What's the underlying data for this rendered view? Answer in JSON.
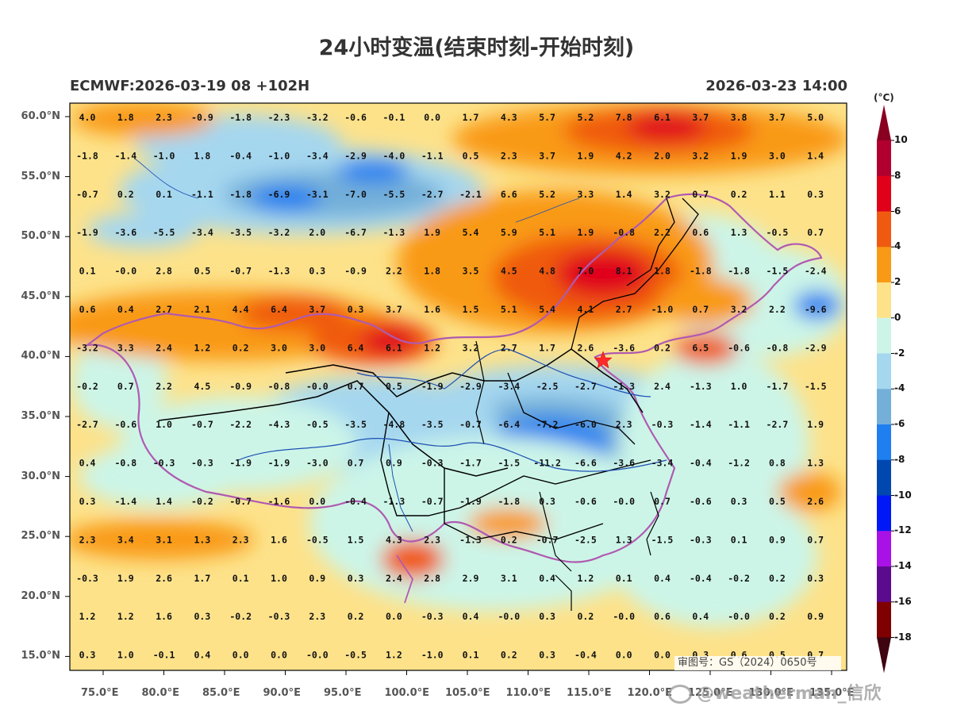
{
  "title": "24小时变温(结束时刻-开始时刻)",
  "model_info": "ECMWF:2026-03-19 08 +102H",
  "valid_time": "2026-03-23 14:00",
  "approval_number": "审图号：GS（2024）0650号",
  "watermark": "@weatherman_信欣",
  "colorbar": {
    "unit": "(°C)",
    "labels": [
      "10",
      "8",
      "6",
      "4",
      "2",
      "0",
      "-2",
      "-4",
      "-6",
      "-8",
      "-10",
      "-12",
      "-14",
      "-16",
      "-18"
    ],
    "colors": [
      "#b10030",
      "#e0001a",
      "#f05a10",
      "#f99a16",
      "#fde28a",
      "#ccf5e8",
      "#a5d7ef",
      "#73afd9",
      "#1f7ff0",
      "#0047b0",
      "#0018f5",
      "#a812e6",
      "#5d0b8e",
      "#7e0000"
    ],
    "top_cap": "#8a0020",
    "bottom_cap": "#3e0510"
  },
  "map": {
    "x_ticks": [
      "75.0°E",
      "80.0°E",
      "85.0°E",
      "90.0°E",
      "95.0°E",
      "100.0°E",
      "105.0°E",
      "110.0°E",
      "115.0°E",
      "120.0°E",
      "125.0°E",
      "130.0°E",
      "135.0°E"
    ],
    "y_ticks": [
      "60.0°N",
      "55.0°N",
      "50.0°N",
      "45.0°N",
      "40.0°N",
      "35.0°N",
      "30.0°N",
      "25.0°N",
      "20.0°N",
      "15.0°N"
    ],
    "grid_values": [
      [
        "4.0",
        "1.8",
        "2.3",
        "-0.9",
        "-1.8",
        "-2.3",
        "-3.2",
        "-0.6",
        "-0.1",
        "0.0",
        "1.7",
        "4.3",
        "5.7",
        "5.2",
        "7.8",
        "6.1",
        "3.7",
        "3.8",
        "3.7",
        "5.0"
      ],
      [
        "-1.8",
        "-1.4",
        "-1.0",
        "1.8",
        "-0.4",
        "-1.0",
        "-3.4",
        "-2.9",
        "-4.0",
        "-1.1",
        "0.5",
        "2.3",
        "3.7",
        "1.9",
        "4.2",
        "2.0",
        "3.2",
        "1.9",
        "3.0",
        "1.4"
      ],
      [
        "-0.7",
        "0.2",
        "0.1",
        "-1.1",
        "-1.8",
        "-6.9",
        "-3.1",
        "-7.0",
        "-5.5",
        "-2.7",
        "-2.1",
        "6.6",
        "5.2",
        "3.3",
        "1.4",
        "3.2",
        "0.7",
        "0.2",
        "1.1",
        "0.3"
      ],
      [
        "-1.9",
        "-3.6",
        "-5.5",
        "-3.4",
        "-3.5",
        "-3.2",
        "2.0",
        "-6.7",
        "-1.3",
        "1.9",
        "5.4",
        "5.9",
        "5.1",
        "1.9",
        "-0.8",
        "2.2",
        "0.6",
        "1.3",
        "-0.5",
        "0.7"
      ],
      [
        "0.1",
        "-0.0",
        "2.8",
        "0.5",
        "-0.7",
        "-1.3",
        "0.3",
        "-0.9",
        "2.2",
        "1.8",
        "3.5",
        "4.5",
        "4.8",
        "7.0",
        "8.1",
        "1.8",
        "-1.8",
        "-1.8",
        "-1.5",
        "-2.4"
      ],
      [
        "0.6",
        "0.4",
        "2.7",
        "2.1",
        "4.4",
        "6.4",
        "3.7",
        "0.3",
        "3.7",
        "1.6",
        "1.5",
        "5.1",
        "5.4",
        "4.1",
        "2.7",
        "-1.0",
        "0.7",
        "3.2",
        "2.2",
        "-9.6"
      ],
      [
        "-3.2",
        "3.3",
        "2.4",
        "1.2",
        "0.2",
        "3.0",
        "3.0",
        "6.4",
        "6.1",
        "1.2",
        "3.2",
        "2.7",
        "1.7",
        "2.6",
        "-3.6",
        "0.2",
        "6.5",
        "-0.6",
        "-0.8",
        "-2.9"
      ],
      [
        "-0.2",
        "0.7",
        "2.2",
        "4.5",
        "-0.9",
        "-0.8",
        "-0.0",
        "0.7",
        "0.5",
        "-1.9",
        "-2.9",
        "-3.4",
        "-2.5",
        "-2.7",
        "-1.3",
        "2.4",
        "-1.3",
        "1.0",
        "-1.7",
        "-1.5"
      ],
      [
        "-2.7",
        "-0.6",
        "1.0",
        "-0.7",
        "-2.2",
        "-4.3",
        "-0.5",
        "-3.5",
        "-4.8",
        "-3.5",
        "-0.7",
        "-6.4",
        "-7.2",
        "-6.0",
        "2.3",
        "-0.3",
        "-1.4",
        "-1.1",
        "-2.7",
        "1.9"
      ],
      [
        "0.4",
        "-0.8",
        "-0.3",
        "-0.3",
        "-1.9",
        "-1.9",
        "-3.0",
        "0.7",
        "0.9",
        "-0.3",
        "-1.7",
        "-1.5",
        "-11.2",
        "-6.6",
        "-3.6",
        "-3.4",
        "-0.4",
        "-1.2",
        "0.8",
        "1.3"
      ],
      [
        "0.3",
        "-1.4",
        "1.4",
        "-0.2",
        "-0.7",
        "-1.6",
        "0.0",
        "-0.4",
        "-1.3",
        "-0.7",
        "-1.9",
        "-1.8",
        "0.3",
        "-0.6",
        "-0.0",
        "0.7",
        "-0.6",
        "0.3",
        "0.5",
        "2.6"
      ],
      [
        "2.3",
        "3.4",
        "3.1",
        "1.3",
        "2.3",
        "1.6",
        "-0.5",
        "1.5",
        "4.3",
        "2.3",
        "-1.3",
        "0.2",
        "-0.7",
        "-2.5",
        "1.3",
        "-1.5",
        "-0.3",
        "0.1",
        "0.9",
        "0.7"
      ],
      [
        "-0.3",
        "1.9",
        "2.6",
        "1.7",
        "0.1",
        "1.0",
        "0.9",
        "0.3",
        "2.4",
        "2.8",
        "2.9",
        "3.1",
        "0.4",
        "1.2",
        "0.1",
        "0.4",
        "-0.4",
        "-0.2",
        "0.2",
        "0.3"
      ],
      [
        "1.2",
        "1.2",
        "1.6",
        "0.3",
        "-0.2",
        "-0.3",
        "2.3",
        "0.2",
        "0.0",
        "-0.3",
        "0.4",
        "-0.0",
        "0.3",
        "0.2",
        "-0.0",
        "0.6",
        "0.4",
        "-0.0",
        "0.2",
        "0.9"
      ],
      [
        "0.3",
        "1.0",
        "-0.1",
        "0.4",
        "0.0",
        "0.0",
        "-0.0",
        "-0.5",
        "1.2",
        "-1.0",
        "0.1",
        "0.2",
        "0.3",
        "-0.4",
        "0.0",
        "0.0",
        "0.3",
        "0.6",
        "0.5",
        "0.7"
      ]
    ],
    "marker": "star"
  }
}
